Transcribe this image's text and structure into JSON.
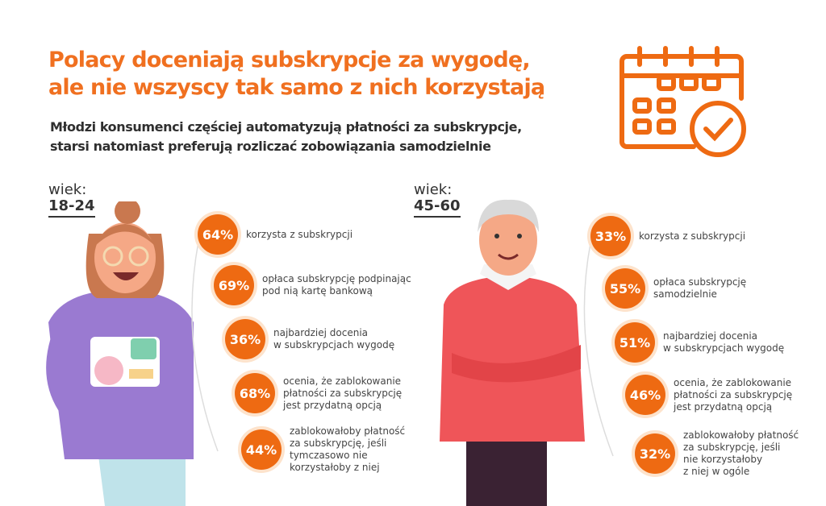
{
  "header": {
    "title_line1": "Polacy doceniają subskrypcje za wygodę,",
    "title_line2": "ale nie wszyscy tak samo z nich korzystają",
    "subtitle_line1": "Młodzi konsumenci częściej automatyzują płatności za subskrypcje,",
    "subtitle_line2": "starsi natomiast preferują rozliczać zobowiązania samodzielnie"
  },
  "icon": "calendar-check-icon",
  "colors": {
    "accent": "#ee6a12",
    "title": "#f07020"
  },
  "young": {
    "label": "wiek:",
    "age": "18-24",
    "stats": [
      {
        "value": "64%",
        "text": "korzysta z subskrypcji"
      },
      {
        "value": "69%",
        "text": "opłaca subskrypcję podpinając\npod nią kartę bankową"
      },
      {
        "value": "36%",
        "text": "najbardziej docenia\nw subskrypcjach wygodę"
      },
      {
        "value": "68%",
        "text": "ocenia, że zablokowanie\npłatności za subskrypcję\njest przydatną opcją"
      },
      {
        "value": "44%",
        "text": "zablokowałoby płatność\nza subskrypcję, jeśli\ntymczasowo nie\nkorzystałoby z niej"
      }
    ]
  },
  "old": {
    "label": "wiek:",
    "age": "45-60",
    "stats": [
      {
        "value": "33%",
        "text": "korzysta z subskrypcji"
      },
      {
        "value": "55%",
        "text": "opłaca subskrypcję\nsamodzielnie"
      },
      {
        "value": "51%",
        "text": "najbardziej docenia\nw subskrypcjach wygodę"
      },
      {
        "value": "46%",
        "text": "ocenia, że zablokowanie\npłatności za subskrypcję\njest przydatną opcją"
      },
      {
        "value": "32%",
        "text": "zablokowałoby płatność\nza subskrypcję, jeśli\nnie korzystałoby\nz niej w ogóle"
      }
    ]
  }
}
